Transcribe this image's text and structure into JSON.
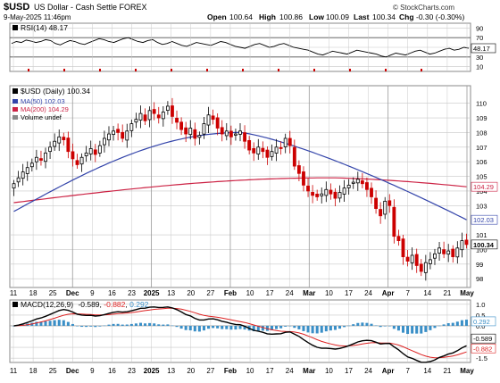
{
  "header": {
    "symbol": "$USD",
    "name": "US Dollar - Cash Settle FOREX",
    "date": "9-May-2025 11:46pm",
    "watermark": "© StockCharts.com",
    "quote": {
      "open_label": "Open",
      "open": "100.64",
      "high_label": "High",
      "high": "100.86",
      "low_label": "Low",
      "low": "100.09",
      "last_label": "Last",
      "last": "100.34",
      "chg_label": "Chg",
      "chg": "-0.30 (-0.30%)"
    }
  },
  "colors": {
    "up": "#000000",
    "down": "#cc0000",
    "ma50": "#3344aa",
    "ma200": "#cc2244",
    "macd_line": "#000000",
    "signal_line": "#dd2222",
    "histogram": "#3a8fc7",
    "grid": "#c8c8c8",
    "marker": "#cc0000"
  },
  "chart_data": [
    {
      "panel": "rsi",
      "type": "line",
      "label": "RSI(14) 48.17",
      "ylim": [
        0,
        100
      ],
      "yticks": [
        10,
        30,
        50,
        70,
        90
      ],
      "levels": [
        30,
        70
      ],
      "last_value": "48.17",
      "values": [
        58,
        62,
        60,
        65,
        63,
        60,
        62,
        66,
        64,
        58,
        55,
        60,
        64,
        62,
        58,
        56,
        60,
        64,
        68,
        66,
        62,
        60,
        64,
        68,
        70,
        66,
        62,
        60,
        64,
        66,
        60,
        56,
        58,
        62,
        58,
        54,
        52,
        56,
        60,
        58,
        56,
        54,
        58,
        62,
        60,
        56,
        52,
        50,
        48,
        52,
        56,
        58,
        54,
        50,
        52,
        56,
        58,
        54,
        50,
        48,
        46,
        44,
        40,
        36,
        34,
        38,
        42,
        40,
        38,
        36,
        40,
        44,
        42,
        40,
        38,
        36,
        32,
        30,
        34,
        38,
        36,
        34,
        38,
        42,
        44,
        40,
        36,
        38,
        42,
        46,
        48,
        44,
        46,
        50,
        48
      ]
    },
    {
      "panel": "price",
      "type": "candlestick",
      "title": "$USD (Daily) 100.34",
      "legend": [
        {
          "name": "MA(50) 102.03",
          "color": "#3344aa"
        },
        {
          "name": "MA(200) 104.29",
          "color": "#cc2244"
        },
        {
          "name": "Volume undef",
          "color": "#000000"
        }
      ],
      "ylim": [
        97.4,
        111.2
      ],
      "yticks": [
        98,
        99,
        100,
        101,
        103,
        104,
        105,
        106,
        107,
        108,
        109,
        110
      ],
      "x_ticks": [
        "11",
        "18",
        "25",
        "Dec",
        "9",
        "16",
        "23",
        "2025",
        "13",
        "20",
        "27",
        "Feb",
        "10",
        "17",
        "24",
        "Mar",
        "10",
        "17",
        "24",
        "Apr",
        "7",
        "14",
        "21",
        "May"
      ],
      "closes": [
        104.5,
        104.9,
        105.3,
        105.6,
        105.9,
        106.3,
        106.1,
        106.6,
        107.0,
        107.4,
        107.7,
        107.5,
        106.7,
        106.2,
        105.8,
        106.3,
        106.6,
        106.9,
        106.5,
        107.1,
        107.6,
        107.9,
        108.1,
        108.0,
        107.6,
        108.1,
        108.6,
        108.9,
        109.3,
        108.8,
        109.5,
        109.3,
        109.0,
        109.4,
        109.8,
        109.1,
        108.7,
        108.2,
        107.9,
        108.3,
        107.6,
        107.8,
        108.6,
        109.2,
        108.9,
        108.3,
        107.9,
        108.1,
        107.7,
        107.9,
        108.1,
        107.4,
        106.8,
        106.6,
        107.0,
        106.7,
        106.3,
        106.7,
        107.0,
        106.9,
        107.6,
        107.1,
        105.7,
        105.2,
        104.4,
        104.0,
        103.7,
        103.6,
        103.8,
        104.1,
        103.8,
        103.5,
        103.9,
        104.2,
        104.4,
        104.6,
        104.8,
        104.5,
        104.1,
        103.6,
        102.8,
        102.3,
        103.3,
        103.0,
        100.9,
        100.6,
        99.5,
        99.2,
        99.6,
        98.9,
        98.5,
        99.1,
        99.3,
        99.7,
        100.1,
        99.7,
        99.9,
        99.5,
        100.1,
        100.6,
        100.34
      ],
      "ma50": {
        "name": "MA(50)",
        "last_label": "102.03",
        "start": 102.6,
        "peak": 108.0,
        "end": 102.03
      },
      "ma200": {
        "name": "MA(200)",
        "last_label": "104.29",
        "start": 103.2,
        "peak": 104.9,
        "end": 104.29
      },
      "right_labels": [
        {
          "text": "104.29",
          "value": 104.29,
          "key": "ma200"
        },
        {
          "text": "102.03",
          "value": 102.03,
          "key": "ma50"
        },
        {
          "text": "100.34",
          "value": 100.34,
          "key": "last"
        }
      ]
    },
    {
      "panel": "macd",
      "type": "line+histogram",
      "label_prefix": "MACD(12,26,9)",
      "macd_value": "-0.589",
      "signal_value": "-0.882",
      "hist_value": "0.292",
      "ylim": [
        -1.7,
        1.2
      ],
      "yticks": [
        "1.0",
        "0.5",
        "0.0",
        "-0.5",
        "-1.0",
        "-1.5"
      ],
      "ytick_values": [
        1.0,
        0.5,
        0.0,
        -0.5,
        -1.0,
        -1.5
      ],
      "right_labels": [
        "0.292",
        "-0.589",
        "-0.882"
      ],
      "x_ticks": [
        "11",
        "18",
        "25",
        "Dec",
        "9",
        "16",
        "23",
        "2025",
        "13",
        "20",
        "27",
        "Feb",
        "10",
        "17",
        "24",
        "Mar",
        "10",
        "17",
        "24",
        "Apr",
        "7",
        "14",
        "21",
        "May"
      ]
    }
  ]
}
